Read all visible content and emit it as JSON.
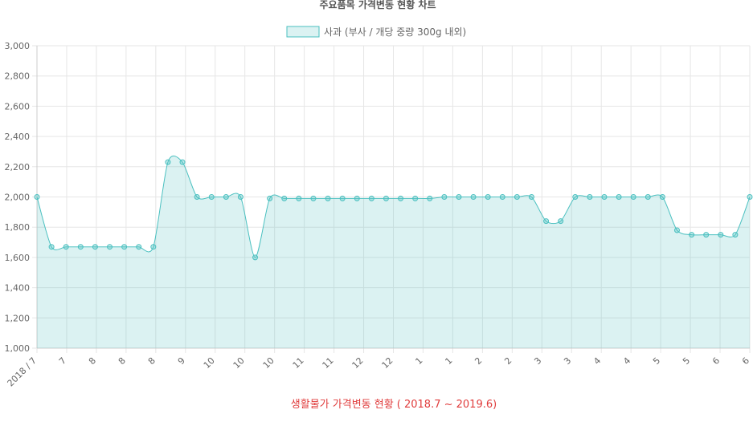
{
  "chart_data": {
    "type": "area",
    "title": "주요품목 가격변동 현황 차트",
    "legend": {
      "label": "사과 (부사 / 개당 중량 300g 내외)",
      "placement": "top-center"
    },
    "caption": "생활물가 가격변동 현황 ( 2018.7 ~ 2019.6)",
    "colors": {
      "line": "#4bc0c0",
      "fill": "#4bc0c0",
      "caption": "#e03c3c",
      "grid": "#e6e6e6",
      "tick_text": "#666666"
    },
    "ylim": [
      1000,
      3000
    ],
    "y_ticks": [
      "1,000",
      "1,200",
      "1,400",
      "1,600",
      "1,800",
      "2,000",
      "2,200",
      "2,400",
      "2,600",
      "2,800",
      "3,000"
    ],
    "x_tick_labels": [
      "2018 / 7",
      "7",
      "8",
      "8",
      "8",
      "9",
      "10",
      "10",
      "10",
      "11",
      "11",
      "12",
      "12",
      "1",
      "1",
      "2",
      "2",
      "3",
      "3",
      "4",
      "4",
      "5",
      "5",
      "6",
      "6"
    ],
    "grid": true,
    "series": [
      {
        "values": [
          2000,
          1670,
          1670,
          1670,
          1670,
          1670,
          1670,
          1670,
          1670,
          2230,
          2230,
          2000,
          2000,
          2000,
          2000,
          1600,
          1990,
          1990,
          1990,
          1990,
          1990,
          1990,
          1990,
          1990,
          1990,
          1990,
          1990,
          1990,
          2000,
          2000,
          2000,
          2000,
          2000,
          2000,
          2000,
          1840,
          1840,
          2000,
          2000,
          2000,
          2000,
          2000,
          2000,
          2000,
          1780,
          1750,
          1750,
          1750,
          1750,
          2000
        ]
      }
    ]
  }
}
